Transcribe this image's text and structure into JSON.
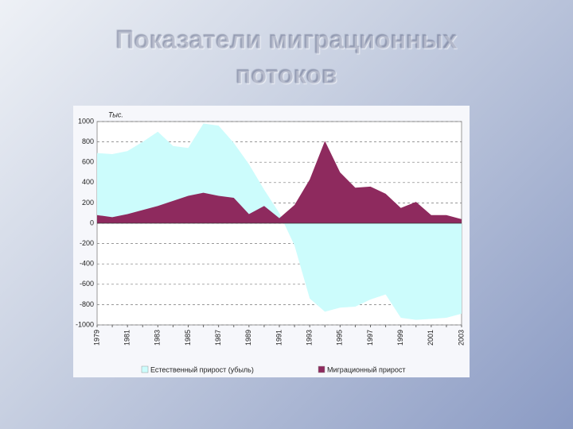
{
  "title": "Показатели миграционных потоков",
  "chart_data": {
    "type": "area",
    "unit_label": "Тыс.",
    "categories": [
      "1979",
      null,
      "1981",
      null,
      "1983",
      null,
      "1985",
      null,
      "1987",
      null,
      "1989",
      null,
      "1991",
      null,
      "1993",
      null,
      "1995",
      null,
      "1997",
      null,
      "1999",
      null,
      "2001",
      null,
      "2003"
    ],
    "series": [
      {
        "name": "Естественный прирост (убыль)",
        "color": "#ccfcfc",
        "values": [
          690,
          680,
          710,
          800,
          900,
          760,
          740,
          980,
          960,
          790,
          580,
          330,
          100,
          -220,
          -740,
          -870,
          -830,
          -820,
          -750,
          -700,
          -930,
          -950,
          -940,
          -930,
          -890
        ]
      },
      {
        "name": "Миграционный прирост",
        "color": "#8e2a5e",
        "values": [
          80,
          60,
          90,
          130,
          170,
          220,
          270,
          300,
          270,
          250,
          90,
          170,
          50,
          180,
          430,
          810,
          500,
          350,
          360,
          290,
          150,
          210,
          80,
          80,
          40
        ]
      }
    ],
    "ylim": [
      -1000,
      1000
    ],
    "yticks": [
      -1000,
      -800,
      -600,
      -400,
      -200,
      0,
      200,
      400,
      600,
      800,
      1000
    ],
    "grid": true
  }
}
